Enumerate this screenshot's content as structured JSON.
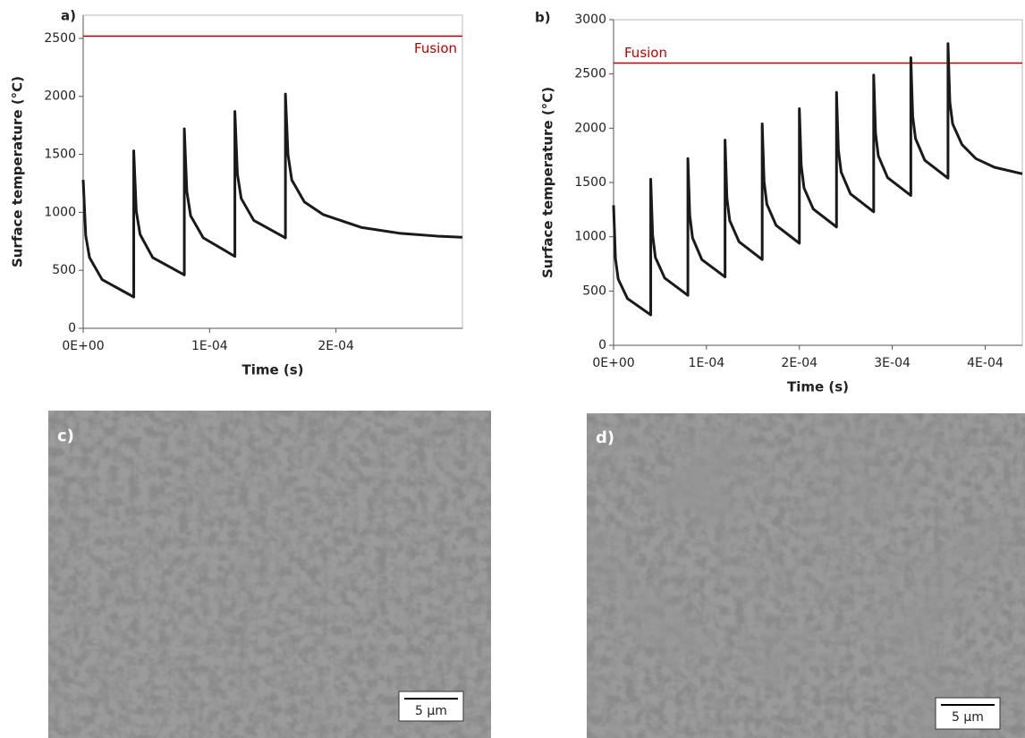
{
  "chart_data": [
    {
      "type": "line",
      "panel_label": "a)",
      "x_label": "Time (s)",
      "y_label": "Surface temperature (°C)",
      "color": "#1a1a1a",
      "xlim": [
        0,
        0.0003
      ],
      "ylim": [
        0,
        2700
      ],
      "xticks": [
        {
          "value": 0,
          "label": "0E+00"
        },
        {
          "value": 0.0001,
          "label": "1E-04"
        },
        {
          "value": 0.0002,
          "label": "2E-04"
        }
      ],
      "yticks": [
        0,
        500,
        1000,
        1500,
        2000,
        2500
      ],
      "reference_line": {
        "value": 2520,
        "label": "Fusion",
        "color": "#c00000"
      },
      "x": [
        0,
        2e-06,
        5e-06,
        1.5e-05,
        4e-05,
        4e-05,
        4.2e-05,
        4.5e-05,
        5.5e-05,
        8e-05,
        8e-05,
        8.2e-05,
        8.5e-05,
        9.5e-05,
        0.00012,
        0.00012,
        0.000122,
        0.000125,
        0.000135,
        0.00016,
        0.00016,
        0.000162,
        0.000165,
        0.000175,
        0.00019,
        0.00022,
        0.00025,
        0.00028,
        0.0003
      ],
      "values": [
        1280,
        800,
        610,
        420,
        270,
        1530,
        1010,
        810,
        610,
        460,
        1720,
        1180,
        970,
        780,
        620,
        1870,
        1330,
        1120,
        930,
        780,
        2020,
        1500,
        1280,
        1090,
        980,
        870,
        820,
        795,
        785
      ]
    },
    {
      "type": "line",
      "panel_label": "b)",
      "x_label": "Time (s)",
      "y_label": "Surface temperature (°C)",
      "color": "#1a1a1a",
      "xlim": [
        0,
        0.00044
      ],
      "ylim": [
        0,
        3000
      ],
      "xticks": [
        {
          "value": 0,
          "label": "0E+00"
        },
        {
          "value": 0.0001,
          "label": "1E-04"
        },
        {
          "value": 0.0002,
          "label": "2E-04"
        },
        {
          "value": 0.0003,
          "label": "3E-04"
        },
        {
          "value": 0.0004,
          "label": "4E-04"
        }
      ],
      "yticks": [
        0,
        500,
        1000,
        1500,
        2000,
        2500,
        3000
      ],
      "reference_line": {
        "value": 2600,
        "label": "Fusion",
        "color": "#c00000"
      },
      "x": [
        0,
        2e-06,
        5e-06,
        1.5e-05,
        4e-05,
        4e-05,
        4.2e-05,
        4.5e-05,
        5.5e-05,
        8e-05,
        8e-05,
        8.2e-05,
        8.5e-05,
        9.5e-05,
        0.00012,
        0.00012,
        0.000122,
        0.000125,
        0.000135,
        0.00016,
        0.00016,
        0.000162,
        0.000165,
        0.000175,
        0.0002,
        0.0002,
        0.000202,
        0.000205,
        0.000215,
        0.00024,
        0.00024,
        0.000242,
        0.000245,
        0.000255,
        0.00028,
        0.00028,
        0.000282,
        0.000285,
        0.000295,
        0.00032,
        0.00032,
        0.000322,
        0.000325,
        0.000335,
        0.00036,
        0.00036,
        0.000362,
        0.000365,
        0.000375,
        0.00039,
        0.00041,
        0.00044
      ],
      "values": [
        1290,
        800,
        610,
        430,
        280,
        1530,
        1020,
        810,
        620,
        460,
        1720,
        1200,
        990,
        790,
        630,
        1890,
        1360,
        1150,
        955,
        790,
        2040,
        1510,
        1300,
        1105,
        940,
        2180,
        1660,
        1450,
        1255,
        1090,
        2330,
        1800,
        1595,
        1395,
        1230,
        2490,
        1955,
        1745,
        1545,
        1380,
        2650,
        2110,
        1905,
        1705,
        1540,
        2780,
        2240,
        2040,
        1850,
        1720,
        1640,
        1580
      ]
    }
  ],
  "images": [
    {
      "label": "c)",
      "scale_bar": "5 µm"
    },
    {
      "label": "d)",
      "scale_bar": "5 µm"
    }
  ]
}
